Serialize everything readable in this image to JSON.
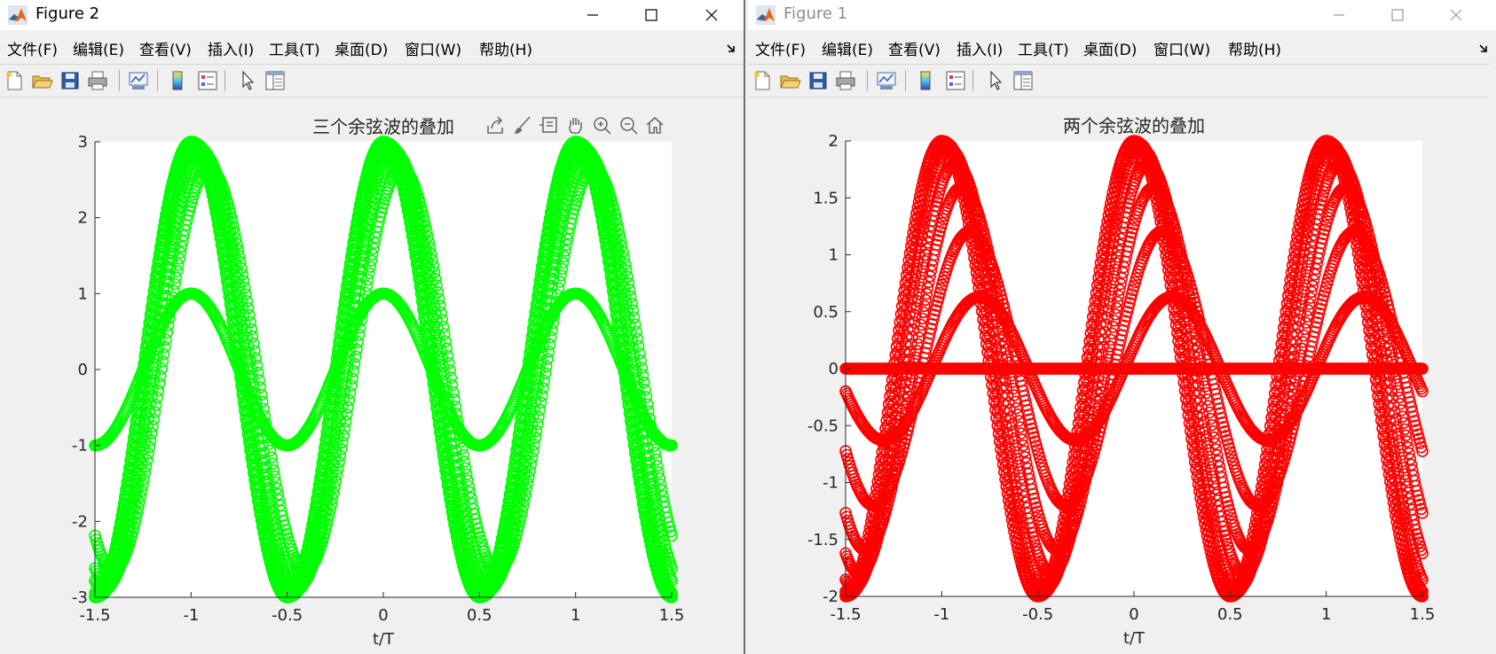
{
  "windows": {
    "left": {
      "title": "Figure 2",
      "menu": [
        "文件(F)",
        "编辑(E)",
        "查看(V)",
        "插入(I)",
        "工具(T)",
        "桌面(D)",
        "窗口(W)",
        "帮助(H)"
      ],
      "plot_color": "#00ff00"
    },
    "right": {
      "title": "Figure 1",
      "menu": [
        "文件(F)",
        "编辑(E)",
        "查看(V)",
        "插入(I)",
        "工具(T)",
        "桌面(D)",
        "窗口(W)",
        "帮助(H)"
      ],
      "plot_color": "#ff0000"
    }
  },
  "toolbar_icons": [
    "new-figure-icon",
    "open-file-icon",
    "save-icon",
    "print-icon",
    "link-plot-icon",
    "colorbar-icon",
    "legend-icon",
    "select-arrow-icon",
    "property-inspector-icon"
  ],
  "axes_toolbar_icons": [
    "export-icon",
    "brush-icon",
    "datatip-icon",
    "pan-icon",
    "zoom-in-icon",
    "zoom-out-icon",
    "home-icon"
  ],
  "chart_data": [
    {
      "type": "scatter",
      "title": "三个余弦波的叠加",
      "xlabel": "t/T",
      "ylabel": "",
      "xlim": [
        -1.5,
        1.5
      ],
      "ylim": [
        -3,
        3
      ],
      "xticks": [
        -1.5,
        -1,
        -0.5,
        0,
        0.5,
        1,
        1.5
      ],
      "xtick_labels": [
        "-1.5",
        "-1",
        "-0.5",
        "0",
        "0.5",
        "1",
        "1.5"
      ],
      "yticks": [
        -3,
        -2,
        -1,
        0,
        1,
        2,
        3
      ],
      "ytick_labels": [
        "-3",
        "-2",
        "-1",
        "0",
        "1",
        "2",
        "3"
      ],
      "marker": "o",
      "color": "#00ff00",
      "series": [
        {
          "amplitudes": [
            1,
            0,
            0
          ],
          "phases": [
            0,
            0,
            0
          ]
        },
        {
          "amplitudes": [
            1,
            1,
            1
          ],
          "phases": [
            0,
            0.6,
            1.2
          ]
        },
        {
          "amplitudes": [
            1,
            1,
            1
          ],
          "phases": [
            0,
            0.4,
            0.8
          ]
        },
        {
          "amplitudes": [
            1,
            1,
            1
          ],
          "phases": [
            0,
            0.3,
            0.6
          ]
        },
        {
          "amplitudes": [
            1,
            1,
            1
          ],
          "phases": [
            0,
            0.15,
            0.3
          ]
        },
        {
          "amplitudes": [
            1,
            1,
            1
          ],
          "phases": [
            0,
            0.07,
            0.14
          ]
        },
        {
          "amplitudes": [
            1,
            1,
            1
          ],
          "phases": [
            0,
            0.02,
            0.04
          ]
        },
        {
          "amplitudes": [
            1,
            1,
            1
          ],
          "phases": [
            0,
            0,
            0
          ]
        }
      ]
    },
    {
      "type": "scatter",
      "title": "两个余弦波的叠加",
      "xlabel": "t/T",
      "ylabel": "",
      "xlim": [
        -1.5,
        1.5
      ],
      "ylim": [
        -2,
        2
      ],
      "xticks": [
        -1.5,
        -1,
        -0.5,
        0,
        0.5,
        1,
        1.5
      ],
      "xtick_labels": [
        "-1.5",
        "-1",
        "-0.5",
        "0",
        "0.5",
        "1",
        "1.5"
      ],
      "yticks": [
        -2,
        -1.5,
        -1,
        -0.5,
        0,
        0.5,
        1,
        1.5,
        2
      ],
      "ytick_labels": [
        "-2",
        "-1.5",
        "-1",
        "-0.5",
        "0",
        "0.5",
        "1",
        "1.5",
        "2"
      ],
      "marker": "o",
      "color": "#ff0000",
      "series": [
        {
          "amplitudes": [
            1,
            1
          ],
          "phases": [
            0,
            3.1416
          ]
        },
        {
          "amplitudes": [
            1,
            1
          ],
          "phases": [
            0,
            2.5
          ]
        },
        {
          "amplitudes": [
            1,
            1
          ],
          "phases": [
            0,
            1.85
          ]
        },
        {
          "amplitudes": [
            1,
            1
          ],
          "phases": [
            0,
            1.3
          ]
        },
        {
          "amplitudes": [
            1,
            1
          ],
          "phases": [
            0,
            0.9
          ]
        },
        {
          "amplitudes": [
            1,
            1
          ],
          "phases": [
            0,
            0.55
          ]
        },
        {
          "amplitudes": [
            1,
            1
          ],
          "phases": [
            0,
            0.3
          ]
        },
        {
          "amplitudes": [
            1,
            1
          ],
          "phases": [
            0,
            0.12
          ]
        },
        {
          "amplitudes": [
            1,
            1
          ],
          "phases": [
            0,
            0
          ]
        }
      ]
    }
  ]
}
